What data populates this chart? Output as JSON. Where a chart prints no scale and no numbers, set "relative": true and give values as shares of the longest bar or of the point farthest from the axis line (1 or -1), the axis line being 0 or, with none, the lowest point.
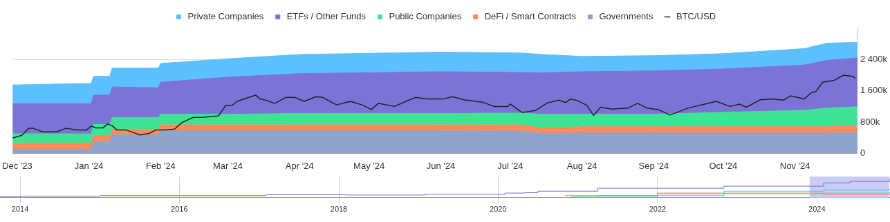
{
  "chart_data": [
    {
      "type": "area",
      "stacked": true,
      "legend": "top",
      "grid": "y",
      "x": [
        "2023-11-29",
        "2024-01-02",
        "2024-01-03",
        "2024-01-10",
        "2024-01-11",
        "2024-01-31",
        "2024-02-01",
        "2024-03-01",
        "2024-04-01",
        "2024-06-01",
        "2024-07-05",
        "2024-07-15",
        "2024-08-01",
        "2024-09-01",
        "2024-10-01",
        "2024-11-05",
        "2024-11-15",
        "2024-11-28"
      ],
      "xlim": [
        "2023-11-29",
        "2024-11-28"
      ],
      "xticks": [
        {
          "value": "2023-12-01",
          "label": "Dec '23"
        },
        {
          "value": "2024-01-01",
          "label": "Jan '24"
        },
        {
          "value": "2024-02-01",
          "label": "Feb '24"
        },
        {
          "value": "2024-03-01",
          "label": "Mar '24"
        },
        {
          "value": "2024-04-01",
          "label": "Apr '24"
        },
        {
          "value": "2024-05-01",
          "label": "May '24"
        },
        {
          "value": "2024-06-01",
          "label": "Jun '24"
        },
        {
          "value": "2024-07-01",
          "label": "Jul '24"
        },
        {
          "value": "2024-08-01",
          "label": "Aug '24"
        },
        {
          "value": "2024-09-01",
          "label": "Sep '24"
        },
        {
          "value": "2024-10-01",
          "label": "Oct '24"
        },
        {
          "value": "2024-11-01",
          "label": "Nov '24"
        }
      ],
      "ylim": [
        0,
        3200
      ],
      "yticks": [
        0,
        {
          "value": 800,
          "label": "800k"
        },
        {
          "value": 1600,
          "label": "1 600k"
        },
        {
          "value": 2400,
          "label": "2 400k"
        }
      ],
      "series": [
        {
          "name": "Governments",
          "color": "#8ea4cb",
          "values": [
            100,
            100,
            300,
            300,
            480,
            480,
            580,
            580,
            580,
            580,
            570,
            510,
            520,
            520,
            520,
            520,
            520,
            530
          ]
        },
        {
          "name": "DeFi / Smart Contracts",
          "color": "#ff8a5c",
          "values": [
            160,
            160,
            140,
            140,
            130,
            130,
            150,
            150,
            150,
            150,
            160,
            140,
            160,
            160,
            160,
            160,
            160,
            160
          ]
        },
        {
          "name": "Public Companies",
          "color": "#3ee394",
          "values": [
            240,
            240,
            300,
            300,
            300,
            300,
            270,
            270,
            290,
            290,
            300,
            350,
            320,
            320,
            370,
            420,
            480,
            500
          ]
        },
        {
          "name": "ETFs / Other Funds",
          "color": "#7b74d6",
          "values": [
            770,
            770,
            750,
            750,
            790,
            770,
            820,
            950,
            1020,
            1070,
            1040,
            1060,
            1090,
            1110,
            1110,
            1160,
            1220,
            1250
          ]
        },
        {
          "name": "Private Companies",
          "color": "#5cc0fc",
          "values": [
            480,
            520,
            480,
            480,
            480,
            500,
            480,
            470,
            490,
            500,
            500,
            470,
            390,
            390,
            390,
            420,
            440,
            400
          ]
        },
        {
          "name": "BTC/USD",
          "type": "line",
          "color": "#222222",
          "x": [
            "2023-11-29",
            "2023-12-03",
            "2023-12-06",
            "2023-12-08",
            "2023-12-12",
            "2023-12-18",
            "2023-12-22",
            "2023-12-27",
            "2023-12-31",
            "2024-01-02",
            "2024-01-04",
            "2024-01-07",
            "2024-01-09",
            "2024-01-11",
            "2024-01-13",
            "2024-01-17",
            "2024-01-23",
            "2024-01-27",
            "2024-01-30",
            "2024-02-03",
            "2024-02-07",
            "2024-02-10",
            "2024-02-15",
            "2024-02-19",
            "2024-02-26",
            "2024-02-29",
            "2024-03-03",
            "2024-03-05",
            "2024-03-13",
            "2024-03-15",
            "2024-03-18",
            "2024-03-21",
            "2024-03-22",
            "2024-03-26",
            "2024-03-30",
            "2024-04-03",
            "2024-04-08",
            "2024-04-11",
            "2024-04-17",
            "2024-04-23",
            "2024-04-28",
            "2024-05-02",
            "2024-05-05",
            "2024-05-12",
            "2024-05-17",
            "2024-05-21",
            "2024-05-26",
            "2024-06-02",
            "2024-06-06",
            "2024-06-11",
            "2024-06-19",
            "2024-06-24",
            "2024-06-30",
            "2024-07-01",
            "2024-07-06",
            "2024-07-08",
            "2024-07-12",
            "2024-07-17",
            "2024-07-22",
            "2024-07-25",
            "2024-07-27",
            "2024-07-30",
            "2024-08-03",
            "2024-08-06",
            "2024-08-09",
            "2024-08-14",
            "2024-08-21",
            "2024-08-25",
            "2024-08-29",
            "2024-09-03",
            "2024-09-08",
            "2024-09-16",
            "2024-09-23",
            "2024-09-28",
            "2024-10-04",
            "2024-10-08",
            "2024-10-11",
            "2024-10-17",
            "2024-10-22",
            "2024-10-27",
            "2024-10-30",
            "2024-11-05",
            "2024-11-08",
            "2024-11-10",
            "2024-11-13",
            "2024-11-18",
            "2024-11-22",
            "2024-11-26",
            "2024-11-27"
          ],
          "values": [
            390,
            460,
            640,
            640,
            550,
            550,
            640,
            600,
            600,
            700,
            650,
            650,
            750,
            710,
            600,
            600,
            470,
            510,
            600,
            600,
            620,
            780,
            920,
            920,
            960,
            1220,
            1230,
            1330,
            1490,
            1390,
            1350,
            1280,
            1300,
            1430,
            1430,
            1330,
            1450,
            1430,
            1240,
            1330,
            1240,
            1120,
            1280,
            1200,
            1330,
            1430,
            1390,
            1390,
            1450,
            1370,
            1310,
            1200,
            1200,
            1260,
            1050,
            1060,
            1100,
            1290,
            1360,
            1300,
            1390,
            1350,
            1230,
            970,
            1180,
            1130,
            1160,
            1280,
            1160,
            1120,
            980,
            1160,
            1260,
            1330,
            1200,
            1260,
            1180,
            1370,
            1390,
            1360,
            1470,
            1390,
            1550,
            1580,
            1820,
            1870,
            2000,
            1970,
            1920
          ]
        }
      ]
    },
    {
      "type": "step",
      "relative": true,
      "grid": "x",
      "xlim": [
        "2013-10",
        "2024-12"
      ],
      "xticks": [
        "2014",
        "2016",
        "2018",
        "2020",
        "2022",
        "2024"
      ],
      "bands": [
        {
          "axis": "x",
          "from": "2023-11-29",
          "to": "2024-11-28",
          "color": "#c9cdf3"
        }
      ],
      "series": [
        {
          "color": "#6f6ad8",
          "x": [
            "2013-10",
            "2014-01",
            "2015-01",
            "2017-02",
            "2018-02",
            "2019-02",
            "2020-02",
            "2020-05",
            "2020-07",
            "2021-04",
            "2022-11",
            "2024-02",
            "2024-06",
            "2024-12"
          ],
          "values": [
            0.05,
            0.08,
            0.11,
            0.16,
            0.14,
            0.18,
            0.24,
            0.26,
            0.34,
            0.49,
            0.6,
            0.77,
            0.85,
            1
          ]
        },
        {
          "color": "#4fb6f5",
          "x": [
            "2021-04",
            "2022-11",
            "2024-02",
            "2024-12"
          ],
          "values": [
            0.11,
            0.34,
            0.4,
            0.47
          ]
        },
        {
          "color": "#3ad58c",
          "x": [
            "2020-12",
            "2022-01",
            "2024-02",
            "2024-12"
          ],
          "values": [
            0.08,
            0.21,
            0.24,
            0.26
          ]
        },
        {
          "color": "#ff8a5c",
          "x": [
            "2020-11",
            "2022-01",
            "2024-02",
            "2024-12"
          ],
          "values": [
            0.11,
            0.24,
            0.16,
            0.16
          ]
        }
      ]
    }
  ]
}
